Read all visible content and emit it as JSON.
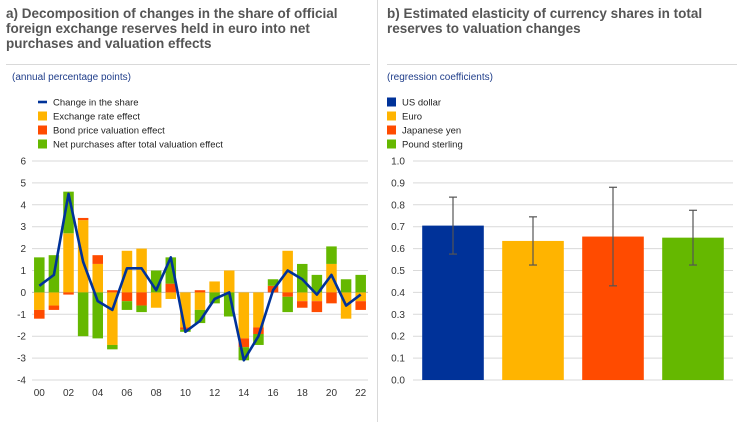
{
  "chart_data": [
    {
      "type": "bar",
      "stacked": true,
      "title": "a) Decomposition of changes in the share of official foreign exchange reserves held in euro into net purchases and valuation effects",
      "ylabel": "(annual percentage points)",
      "ylim": [
        -4,
        6
      ],
      "yticks": [
        -4,
        -3,
        -2,
        -1,
        0,
        1,
        2,
        3,
        4,
        5,
        6
      ],
      "categories": [
        "00",
        "01",
        "02",
        "03",
        "04",
        "05",
        "06",
        "07",
        "08",
        "09",
        "10",
        "11",
        "12",
        "13",
        "14",
        "15",
        "16",
        "17",
        "18",
        "19",
        "20",
        "21",
        "22"
      ],
      "xtick_labels": [
        "00",
        "",
        "02",
        "",
        "04",
        "",
        "06",
        "",
        "08",
        "",
        "10",
        "",
        "12",
        "",
        "14",
        "",
        "16",
        "",
        "18",
        "",
        "20",
        "",
        "22"
      ],
      "grid": true,
      "legend_position": "top-left",
      "series": [
        {
          "name": "Exchange rate effect",
          "kind": "bar",
          "color": "#ffb400",
          "values": [
            -0.8,
            -0.6,
            2.7,
            3.3,
            1.3,
            -2.4,
            1.9,
            2.0,
            -0.7,
            -0.3,
            -1.6,
            -0.8,
            0.5,
            1.0,
            -2.1,
            -1.6,
            0.0,
            1.9,
            -0.4,
            -0.4,
            1.3,
            -1.2,
            -0.4
          ]
        },
        {
          "name": "Bond price valuation effect",
          "kind": "bar",
          "color": "#ff4b00",
          "values": [
            -0.4,
            -0.2,
            -0.1,
            0.1,
            0.4,
            0.1,
            -0.4,
            -0.6,
            0.0,
            0.4,
            -0.1,
            0.1,
            0.0,
            0.0,
            -0.4,
            -0.3,
            0.3,
            -0.2,
            -0.3,
            -0.5,
            -0.5,
            0.0,
            -0.4
          ]
        },
        {
          "name": "Net purchases after total valuation effect",
          "kind": "bar",
          "color": "#65b800",
          "values": [
            1.6,
            1.7,
            1.9,
            -2.0,
            -2.1,
            -0.2,
            -0.4,
            -0.3,
            1.0,
            1.2,
            -0.1,
            -0.6,
            -0.5,
            -1.1,
            -0.6,
            -0.5,
            0.3,
            -0.7,
            1.3,
            0.8,
            0.8,
            0.6,
            0.8
          ]
        },
        {
          "name": "Change in the share",
          "kind": "line",
          "color": "#003299",
          "values": [
            0.3,
            0.8,
            4.5,
            1.4,
            -0.4,
            -0.8,
            1.1,
            1.1,
            0.1,
            1.6,
            -1.8,
            -1.3,
            -0.3,
            0.0,
            -3.1,
            -2.0,
            0.1,
            1.0,
            0.6,
            -0.1,
            0.8,
            -0.6,
            -0.1
          ]
        }
      ],
      "legend_order": [
        "Change in the share",
        "Exchange rate effect",
        "Bond price valuation effect",
        "Net purchases after total valuation effect"
      ]
    },
    {
      "type": "bar",
      "title": "b) Estimated elasticity of currency shares in total reserves to valuation changes",
      "ylabel": "(regression coefficients)",
      "ylim": [
        0,
        1.0
      ],
      "yticks": [
        "0.0",
        "0.1",
        "0.2",
        "0.3",
        "0.4",
        "0.5",
        "0.6",
        "0.7",
        "0.8",
        "0.9",
        "1.0"
      ],
      "categories": [
        "US dollar",
        "Euro",
        "Japanese yen",
        "Pound sterling"
      ],
      "values": [
        0.705,
        0.635,
        0.655,
        0.65
      ],
      "error_low": [
        0.575,
        0.525,
        0.43,
        0.525
      ],
      "error_high": [
        0.835,
        0.745,
        0.88,
        0.775
      ],
      "colors": [
        "#003299",
        "#ffb400",
        "#ff4b00",
        "#65b800"
      ],
      "grid": true,
      "legend_position": "top-left"
    }
  ]
}
